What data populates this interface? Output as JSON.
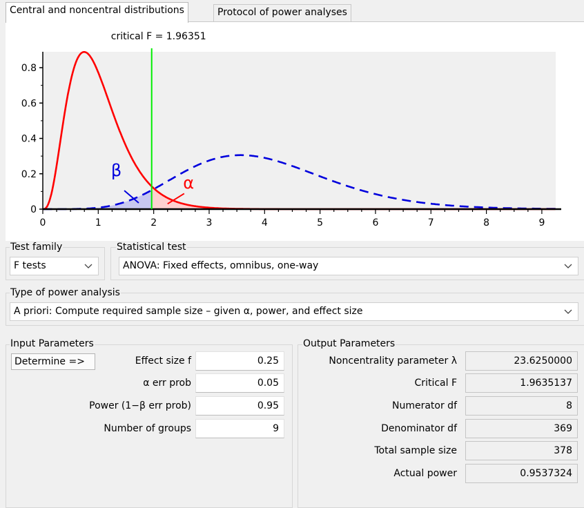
{
  "tabs": [
    {
      "label": "Central and noncentral distributions",
      "active": true
    },
    {
      "label": "Protocol of power analyses",
      "active": false
    }
  ],
  "chart_data": {
    "type": "line",
    "title": "critical F = 1.96351",
    "xlabel": "",
    "ylabel": "",
    "xlim": [
      0,
      9.25
    ],
    "ylim": [
      0,
      0.89
    ],
    "x_ticks": [
      "0",
      "1",
      "2",
      "3",
      "4",
      "5",
      "6",
      "7",
      "8",
      "9"
    ],
    "y_ticks": [
      "0",
      "0.2",
      "0.4",
      "0.6",
      "0.8"
    ],
    "critical_f": 1.96351,
    "beta_symbol": "β",
    "alpha_symbol": "α",
    "colors": {
      "central": "#ff0000",
      "noncentral": "#0000dd",
      "critical": "#00ee00",
      "alpha_fill": "#ffd0d0",
      "beta_fill": "#c8c8f0",
      "plot_bg": "#f0f0f0"
    },
    "series": [
      {
        "distribution": "central F",
        "df1": 8,
        "df2": 369,
        "lambda": 0,
        "style": "solid",
        "color": "#ff0000"
      },
      {
        "distribution": "noncentral F",
        "df1": 8,
        "df2": 369,
        "lambda": 23.625,
        "style": "dashed",
        "color": "#0000dd"
      }
    ],
    "grid": false
  },
  "test_family": {
    "label": "Test family",
    "value": "F tests"
  },
  "statistical_test": {
    "label": "Statistical test",
    "value": "ANOVA: Fixed effects, omnibus, one-way"
  },
  "power_analysis": {
    "label": "Type of power analysis",
    "value": "A priori: Compute required sample size – given α, power, and effect size"
  },
  "input": {
    "title": "Input Parameters",
    "determine": "Determine =>",
    "params": [
      {
        "label": "Effect size f",
        "value": "0.25"
      },
      {
        "label": "α err prob",
        "value": "0.05"
      },
      {
        "label": "Power (1−β err prob)",
        "value": "0.95"
      },
      {
        "label": "Number of groups",
        "value": "9"
      }
    ]
  },
  "output": {
    "title": "Output Parameters",
    "params": [
      {
        "label": "Noncentrality parameter λ",
        "value": "23.6250000"
      },
      {
        "label": "Critical F",
        "value": "1.9635137"
      },
      {
        "label": "Numerator df",
        "value": "8"
      },
      {
        "label": "Denominator df",
        "value": "369"
      },
      {
        "label": "Total sample size",
        "value": "378"
      },
      {
        "label": "Actual power",
        "value": "0.9537324"
      }
    ]
  }
}
